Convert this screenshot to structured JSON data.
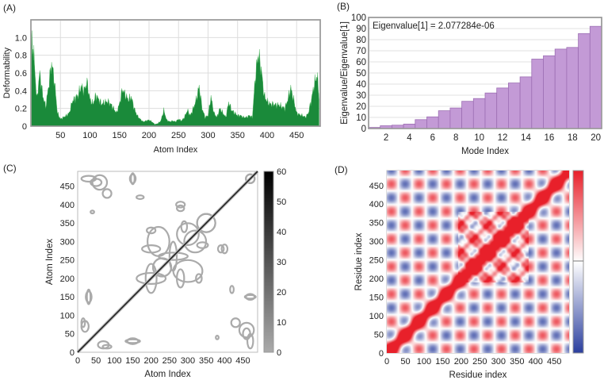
{
  "chart_data": [
    {
      "panel_label": "(A)",
      "type": "area",
      "xlabel": "Atom Index",
      "ylabel": "Deformability",
      "xlim": [
        0,
        490
      ],
      "ylim": [
        0,
        1.2
      ],
      "xticks": [
        50,
        100,
        150,
        200,
        250,
        300,
        350,
        400,
        450
      ],
      "yticks": [
        0,
        0.2,
        0.4,
        0.6,
        0.8,
        1.0
      ],
      "ytick_labels": [
        "0",
        "0.2",
        "0.4",
        "0.6",
        "0.8",
        "1.0"
      ],
      "grid": true,
      "color": "#1a8a3a",
      "x": [
        1,
        5,
        10,
        15,
        20,
        25,
        30,
        35,
        40,
        45,
        50,
        55,
        60,
        65,
        70,
        75,
        80,
        85,
        90,
        95,
        100,
        105,
        110,
        115,
        120,
        125,
        130,
        135,
        140,
        145,
        150,
        155,
        160,
        165,
        170,
        175,
        180,
        185,
        190,
        195,
        200,
        205,
        210,
        215,
        220,
        225,
        230,
        235,
        240,
        245,
        250,
        255,
        260,
        265,
        270,
        275,
        280,
        285,
        290,
        295,
        300,
        305,
        310,
        315,
        320,
        325,
        330,
        335,
        340,
        345,
        350,
        355,
        360,
        365,
        370,
        375,
        380,
        385,
        390,
        395,
        400,
        405,
        410,
        415,
        420,
        425,
        430,
        435,
        440,
        445,
        450,
        455,
        460,
        465,
        470,
        475,
        480,
        485,
        488
      ],
      "y": [
        1.0,
        0.8,
        0.3,
        0.6,
        0.35,
        0.22,
        0.45,
        0.72,
        0.5,
        0.15,
        0.08,
        0.1,
        0.12,
        0.15,
        0.28,
        0.32,
        0.35,
        0.45,
        0.4,
        0.5,
        0.3,
        0.25,
        0.35,
        0.3,
        0.25,
        0.27,
        0.28,
        0.25,
        0.2,
        0.15,
        0.25,
        0.42,
        0.35,
        0.3,
        0.33,
        0.2,
        0.12,
        0.08,
        0.05,
        0.06,
        0.07,
        0.05,
        0.02,
        0.03,
        0.06,
        0.18,
        0.07,
        0.05,
        0.06,
        0.05,
        0.08,
        0.06,
        0.1,
        0.18,
        0.12,
        0.2,
        0.3,
        0.45,
        0.2,
        0.1,
        0.12,
        0.33,
        0.15,
        0.1,
        0.2,
        0.15,
        0.1,
        0.27,
        0.18,
        0.15,
        0.12,
        0.12,
        0.1,
        0.1,
        0.12,
        0.1,
        0.55,
        0.82,
        0.65,
        0.35,
        0.28,
        0.25,
        0.25,
        0.24,
        0.24,
        0.22,
        0.2,
        0.3,
        0.43,
        0.3,
        0.15,
        0.13,
        0.12,
        0.1,
        0.15,
        0.3,
        0.48,
        0.58,
        0.3
      ]
    },
    {
      "panel_label": "(B)",
      "type": "bar",
      "annotation": "Eigenvalue[1] = 2.077284e-06",
      "xlabel": "Mode Index",
      "ylabel": "Eigenvalue/Eigenvalue[1]",
      "xlim": [
        0.5,
        20.5
      ],
      "ylim": [
        0,
        100
      ],
      "xticks": [
        2,
        4,
        6,
        8,
        10,
        12,
        14,
        16,
        18,
        20
      ],
      "yticks": [
        0,
        10,
        20,
        30,
        40,
        50,
        60,
        70,
        80,
        90,
        100
      ],
      "grid": true,
      "color": "#c39ad6",
      "categories": [
        1,
        2,
        3,
        4,
        5,
        6,
        7,
        8,
        9,
        10,
        11,
        12,
        13,
        14,
        15,
        16,
        17,
        18,
        19,
        20
      ],
      "values": [
        1,
        2.5,
        3,
        4,
        8,
        10.5,
        16,
        18.5,
        24.5,
        27,
        32,
        36.5,
        41,
        46.5,
        62.5,
        65.5,
        71.5,
        73,
        85.5,
        92
      ]
    },
    {
      "panel_label": "(C)",
      "type": "heatmap",
      "xlabel": "Atom Index",
      "ylabel": "Atom Index",
      "xlim": [
        0,
        490
      ],
      "ylim": [
        0,
        490
      ],
      "xticks": [
        0,
        50,
        100,
        150,
        200,
        250,
        300,
        350,
        400,
        450
      ],
      "yticks": [
        0,
        50,
        100,
        150,
        200,
        250,
        300,
        350,
        400,
        450
      ],
      "colorbar": {
        "range": [
          0,
          60
        ],
        "ticks": [
          0,
          10,
          20,
          30,
          40,
          50,
          60
        ],
        "colors": [
          "#aaaaaa",
          "#000000"
        ]
      }
    },
    {
      "panel_label": "(D)",
      "type": "heatmap",
      "xlabel": "Residue index",
      "ylabel": "Residue index",
      "xlim": [
        0,
        490
      ],
      "ylim": [
        0,
        490
      ],
      "xticks": [
        0,
        50,
        100,
        150,
        200,
        250,
        300,
        350,
        400,
        450
      ],
      "yticks": [
        0,
        50,
        100,
        150,
        200,
        250,
        300,
        350,
        400,
        450
      ],
      "colorbar": {
        "colors": [
          "#2b3f9e",
          "#ffffff",
          "#e8202a"
        ]
      }
    }
  ]
}
